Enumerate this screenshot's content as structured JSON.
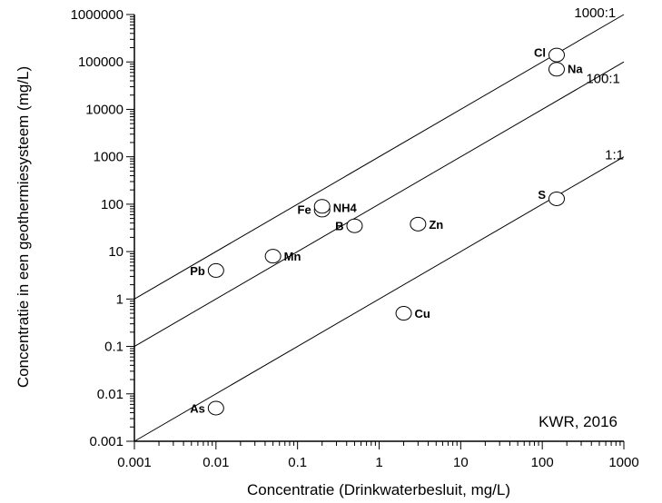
{
  "chart_data": {
    "type": "scatter",
    "xlabel": "Concentratie (Drinkwaterbesluit, mg/L)",
    "ylabel": "Concentratie in een geothermiesysteem (mg/L)",
    "xscale": "log",
    "yscale": "log",
    "xlim": [
      0.001,
      1000
    ],
    "ylim": [
      0.001,
      1000000
    ],
    "x_ticks": [
      "0.001",
      "0.01",
      "0.1",
      "1",
      "10",
      "100",
      "1000"
    ],
    "y_ticks": [
      "0.001",
      "0.01",
      "0.1",
      "1",
      "10",
      "100",
      "1000",
      "10000",
      "100000",
      "1000000"
    ],
    "points": [
      {
        "label": "Cl",
        "x": 150,
        "y": 140000
      },
      {
        "label": "Na",
        "x": 150,
        "y": 70000
      },
      {
        "label": "Fe",
        "x": 0.2,
        "y": 75
      },
      {
        "label": "NH4",
        "x": 0.2,
        "y": 90
      },
      {
        "label": "B",
        "x": 0.5,
        "y": 35
      },
      {
        "label": "Zn",
        "x": 3,
        "y": 38
      },
      {
        "label": "S",
        "x": 150,
        "y": 130
      },
      {
        "label": "Mn",
        "x": 0.05,
        "y": 8
      },
      {
        "label": "Pb",
        "x": 0.01,
        "y": 4
      },
      {
        "label": "Cu",
        "x": 2,
        "y": 0.5
      },
      {
        "label": "As",
        "x": 0.01,
        "y": 0.005
      }
    ],
    "reference_lines": [
      {
        "label": "1000:1",
        "ratio": 1000
      },
      {
        "label": "100:1",
        "ratio": 100
      },
      {
        "label": "1:1",
        "ratio": 1
      }
    ],
    "annotation": "KWR, 2016",
    "legend": "none",
    "grid": false
  }
}
